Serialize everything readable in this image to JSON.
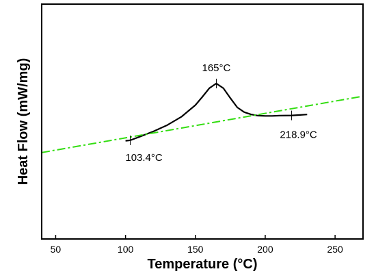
{
  "chart_data": {
    "type": "line",
    "title": "",
    "xlabel": "Temperature (°C)",
    "ylabel": "Heat Flow  (mW/mg)",
    "xlim": [
      40,
      270
    ],
    "ylim": [
      0,
      1
    ],
    "xticks": [
      50,
      100,
      150,
      200,
      250
    ],
    "y_tick_labels": false,
    "grid": false,
    "series": [
      {
        "style": "solid",
        "color": "#000000",
        "x": [
          100,
          103.4,
          110,
          120,
          130,
          140,
          150,
          155,
          160,
          165,
          170,
          175,
          180,
          185,
          190,
          195,
          200,
          205,
          210,
          218.9,
          225,
          230
        ],
        "y": [
          0.418,
          0.42,
          0.435,
          0.458,
          0.485,
          0.52,
          0.57,
          0.605,
          0.642,
          0.662,
          0.642,
          0.6,
          0.56,
          0.54,
          0.53,
          0.525,
          0.524,
          0.524,
          0.525,
          0.526,
          0.528,
          0.53
        ]
      },
      {
        "style": "dash-dot",
        "color": "#33dd11",
        "x": [
          40,
          270
        ],
        "y": [
          0.368,
          0.608
        ]
      }
    ],
    "annotations": [
      {
        "text": "165°C",
        "x": 165,
        "y": 0.662
      },
      {
        "text": "103.4°C",
        "x": 103.4,
        "y": 0.42
      },
      {
        "text": "218.9°C",
        "x": 218.9,
        "y": 0.526
      }
    ]
  }
}
